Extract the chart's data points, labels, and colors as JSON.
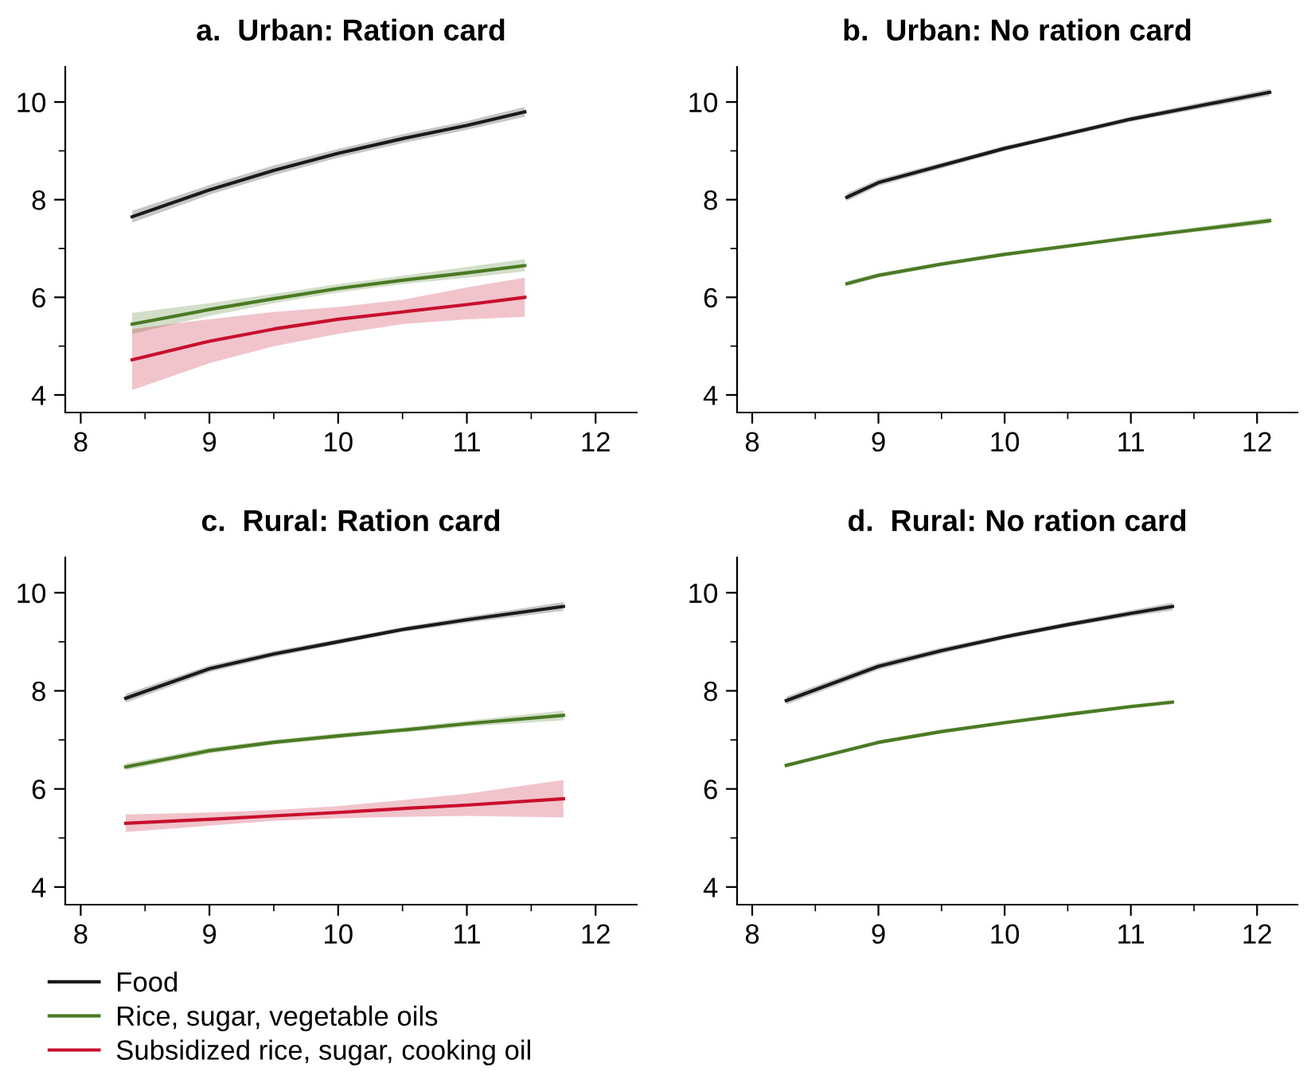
{
  "chart_data": [
    {
      "type": "line",
      "title": "a.  Urban: Ration card",
      "xlim": [
        7.88,
        12.32
      ],
      "ylim": [
        3.64,
        10.72
      ],
      "xticks": [
        8,
        {
          "value": 8.5,
          "label": null
        },
        9,
        {
          "value": 9.5,
          "label": null
        },
        10,
        {
          "value": 10.5,
          "label": null
        },
        11,
        {
          "value": 11.5,
          "label": null
        },
        12
      ],
      "yticks": [
        4,
        {
          "value": 5,
          "label": null
        },
        6,
        {
          "value": 7,
          "label": null
        },
        8,
        {
          "value": 9,
          "label": null
        },
        10
      ],
      "grid": false,
      "legend": "bottom",
      "series": [
        {
          "name": "Food",
          "color": "#1a1a1a",
          "x": [
            8.4,
            9,
            9.5,
            10,
            10.5,
            11,
            11.45
          ],
          "values": [
            7.65,
            8.2,
            8.6,
            8.95,
            9.25,
            9.52,
            9.8
          ],
          "lower": [
            7.53,
            8.1,
            8.5,
            8.86,
            9.16,
            9.43,
            9.7
          ],
          "upper": [
            7.77,
            8.3,
            8.7,
            9.04,
            9.34,
            9.61,
            9.9
          ]
        },
        {
          "name": "Rice, sugar, vegetable oils",
          "color": "#4a7a22",
          "x": [
            8.4,
            9,
            9.5,
            10,
            10.5,
            11,
            11.45
          ],
          "values": [
            5.45,
            5.75,
            5.97,
            6.18,
            6.35,
            6.5,
            6.65
          ],
          "lower": [
            5.25,
            5.62,
            5.88,
            6.1,
            6.27,
            6.4,
            6.53
          ],
          "upper": [
            5.68,
            5.88,
            6.07,
            6.27,
            6.44,
            6.62,
            6.78
          ]
        },
        {
          "name": "Subsidized rice, sugar, cooking oil",
          "color": "#c8102e",
          "x": [
            8.4,
            9,
            9.5,
            10,
            10.5,
            11,
            11.45
          ],
          "values": [
            4.72,
            5.1,
            5.35,
            5.55,
            5.7,
            5.85,
            6.0
          ],
          "lower": [
            4.1,
            4.65,
            5.0,
            5.25,
            5.45,
            5.55,
            5.6
          ],
          "upper": [
            5.35,
            5.55,
            5.7,
            5.8,
            5.95,
            6.2,
            6.4
          ]
        }
      ]
    },
    {
      "type": "line",
      "title": "b.  Urban: No ration card",
      "xlim": [
        7.88,
        12.32
      ],
      "ylim": [
        3.64,
        10.72
      ],
      "xticks": [
        8,
        {
          "value": 8.5,
          "label": null
        },
        9,
        {
          "value": 9.5,
          "label": null
        },
        10,
        {
          "value": 10.5,
          "label": null
        },
        11,
        {
          "value": 11.5,
          "label": null
        },
        12
      ],
      "yticks": [
        4,
        {
          "value": 5,
          "label": null
        },
        6,
        {
          "value": 7,
          "label": null
        },
        8,
        {
          "value": 9,
          "label": null
        },
        10
      ],
      "grid": false,
      "legend": false,
      "series": [
        {
          "color": "#1a1a1a",
          "x": [
            8.75,
            9,
            9.5,
            10,
            10.5,
            11,
            11.5,
            12.1
          ],
          "values": [
            8.05,
            8.35,
            8.7,
            9.05,
            9.35,
            9.65,
            9.9,
            10.2
          ],
          "lower": [
            7.97,
            8.28,
            8.64,
            9.0,
            9.3,
            9.6,
            9.84,
            10.13
          ],
          "upper": [
            8.13,
            8.42,
            8.76,
            9.1,
            9.4,
            9.7,
            9.96,
            10.27
          ]
        },
        {
          "color": "#4a7a22",
          "x": [
            8.75,
            9,
            9.5,
            10,
            10.5,
            11,
            11.5,
            12.1
          ],
          "values": [
            6.28,
            6.45,
            6.68,
            6.88,
            7.05,
            7.22,
            7.38,
            7.57
          ],
          "lower": [
            6.23,
            6.4,
            6.64,
            6.84,
            7.01,
            7.18,
            7.33,
            7.51
          ],
          "upper": [
            6.33,
            6.5,
            6.72,
            6.92,
            7.09,
            7.26,
            7.43,
            7.63
          ]
        }
      ]
    },
    {
      "type": "line",
      "title": "c.  Rural: Ration card",
      "xlim": [
        7.88,
        12.32
      ],
      "ylim": [
        3.64,
        10.72
      ],
      "xticks": [
        8,
        {
          "value": 8.5,
          "label": null
        },
        9,
        {
          "value": 9.5,
          "label": null
        },
        10,
        {
          "value": 10.5,
          "label": null
        },
        11,
        {
          "value": 11.5,
          "label": null
        },
        12
      ],
      "yticks": [
        4,
        {
          "value": 5,
          "label": null
        },
        6,
        {
          "value": 7,
          "label": null
        },
        8,
        {
          "value": 9,
          "label": null
        },
        10
      ],
      "grid": false,
      "legend": false,
      "series": [
        {
          "color": "#1a1a1a",
          "x": [
            8.35,
            9,
            9.5,
            10,
            10.5,
            11,
            11.75
          ],
          "values": [
            7.85,
            8.45,
            8.75,
            9.0,
            9.25,
            9.45,
            9.72
          ],
          "lower": [
            7.76,
            8.38,
            8.69,
            8.95,
            9.2,
            9.39,
            9.63
          ],
          "upper": [
            7.94,
            8.52,
            8.81,
            9.05,
            9.3,
            9.51,
            9.81
          ]
        },
        {
          "color": "#4a7a22",
          "x": [
            8.35,
            9,
            9.5,
            10,
            10.5,
            11,
            11.75
          ],
          "values": [
            6.45,
            6.78,
            6.95,
            7.08,
            7.2,
            7.33,
            7.5
          ],
          "lower": [
            6.38,
            6.72,
            6.9,
            7.03,
            7.15,
            7.27,
            7.4
          ],
          "upper": [
            6.52,
            6.84,
            7.0,
            7.13,
            7.25,
            7.39,
            7.6
          ]
        },
        {
          "color": "#c8102e",
          "x": [
            8.35,
            9,
            9.5,
            10,
            10.5,
            11,
            11.75
          ],
          "values": [
            5.3,
            5.38,
            5.45,
            5.52,
            5.6,
            5.67,
            5.8
          ],
          "lower": [
            5.12,
            5.25,
            5.35,
            5.4,
            5.43,
            5.45,
            5.42
          ],
          "upper": [
            5.48,
            5.52,
            5.57,
            5.65,
            5.77,
            5.9,
            6.18
          ]
        }
      ]
    },
    {
      "type": "line",
      "title": "d.  Rural: No ration card",
      "xlim": [
        7.88,
        12.32
      ],
      "ylim": [
        3.64,
        10.72
      ],
      "xticks": [
        8,
        {
          "value": 8.5,
          "label": null
        },
        9,
        {
          "value": 9.5,
          "label": null
        },
        10,
        {
          "value": 10.5,
          "label": null
        },
        11,
        {
          "value": 11.5,
          "label": null
        },
        12
      ],
      "yticks": [
        4,
        {
          "value": 5,
          "label": null
        },
        6,
        {
          "value": 7,
          "label": null
        },
        8,
        {
          "value": 9,
          "label": null
        },
        10
      ],
      "grid": false,
      "legend": false,
      "series": [
        {
          "color": "#1a1a1a",
          "x": [
            8.27,
            9,
            9.5,
            10,
            10.5,
            11,
            11.33
          ],
          "values": [
            7.8,
            8.5,
            8.82,
            9.1,
            9.35,
            9.58,
            9.72
          ],
          "lower": [
            7.72,
            8.43,
            8.76,
            9.05,
            9.3,
            9.52,
            9.64
          ],
          "upper": [
            7.88,
            8.57,
            8.88,
            9.15,
            9.4,
            9.64,
            9.8
          ]
        },
        {
          "color": "#4a7a22",
          "x": [
            8.27,
            9,
            9.5,
            10,
            10.5,
            11,
            11.33
          ],
          "values": [
            6.48,
            6.95,
            7.17,
            7.35,
            7.52,
            7.68,
            7.77
          ],
          "lower": [
            6.44,
            6.91,
            7.13,
            7.31,
            7.48,
            7.64,
            7.73
          ],
          "upper": [
            6.52,
            6.99,
            7.21,
            7.39,
            7.56,
            7.72,
            7.81
          ]
        }
      ]
    }
  ]
}
